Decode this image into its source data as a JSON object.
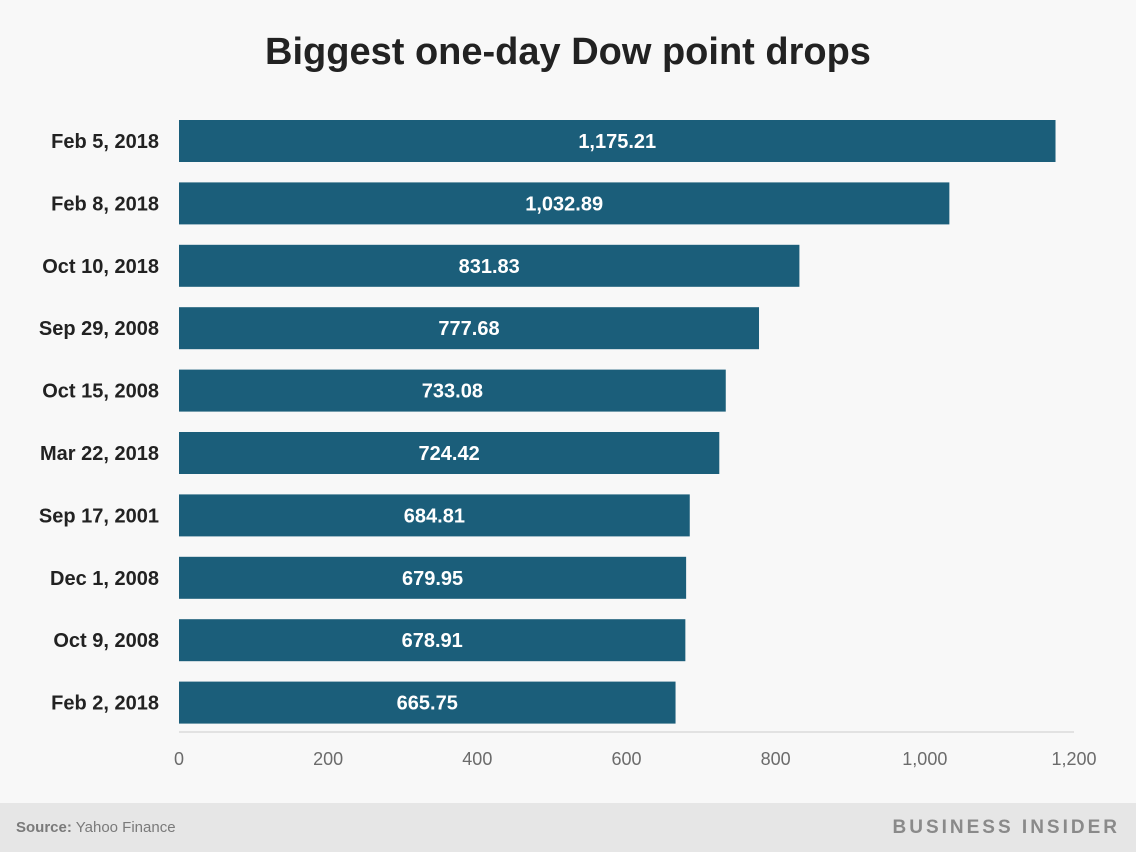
{
  "chart_data": {
    "type": "bar",
    "orientation": "horizontal",
    "title": "Biggest one-day Dow point drops",
    "categories": [
      "Feb 5, 2018",
      "Feb 8, 2018",
      "Oct 10, 2018",
      "Sep 29, 2008",
      "Oct 15, 2008",
      "Mar 22, 2018",
      "Sep 17, 2001",
      "Dec 1, 2008",
      "Oct 9, 2008",
      "Feb 2, 2018"
    ],
    "values": [
      1175.21,
      1032.89,
      831.83,
      777.68,
      733.08,
      724.42,
      684.81,
      679.95,
      678.91,
      665.75
    ],
    "value_labels": [
      "1,175.21",
      "1,032.89",
      "831.83",
      "777.68",
      "733.08",
      "724.42",
      "684.81",
      "679.95",
      "678.91",
      "665.75"
    ],
    "xlim": [
      0,
      1200
    ],
    "xticks": [
      0,
      200,
      400,
      600,
      800,
      1000,
      1200
    ],
    "xtick_labels": [
      "0",
      "200",
      "400",
      "600",
      "800",
      "1,000",
      "1,200"
    ],
    "xlabel": "",
    "ylabel": "",
    "grid": false,
    "bar_color": "#1b5e7a"
  },
  "footer": {
    "source_label": "Source:",
    "source_value": " Yahoo Finance",
    "brand": "BUSINESS INSIDER"
  }
}
